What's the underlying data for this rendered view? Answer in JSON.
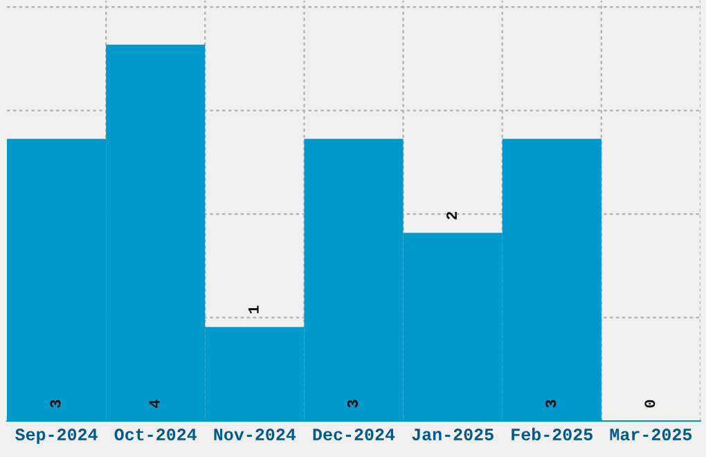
{
  "chart_data": {
    "type": "bar",
    "categories": [
      "Sep-2024",
      "Oct-2024",
      "Nov-2024",
      "Dec-2024",
      "Jan-2025",
      "Feb-2025",
      "Mar-2025"
    ],
    "values": [
      3,
      4,
      1,
      3,
      2,
      3,
      0
    ],
    "color": "#0099cc",
    "ylim": [
      0,
      4.47
    ],
    "yticks": [
      {
        "value": 1.1,
        "label": null
      },
      {
        "value": 2.2,
        "label": null
      },
      {
        "value": 3.3,
        "label": null
      },
      {
        "value": 4.4,
        "label": null
      }
    ],
    "grid": true,
    "data_labels": true
  }
}
